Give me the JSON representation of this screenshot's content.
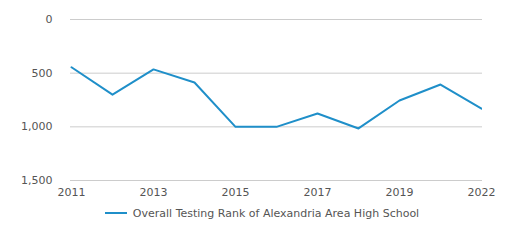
{
  "chart_data": {
    "type": "line",
    "categories": [
      "2011",
      null,
      "2013",
      null,
      "2015",
      null,
      "2017",
      null,
      "2019",
      null,
      "2022"
    ],
    "series": [
      {
        "name": "Overall Testing Rank of Alexandria Area High School",
        "color": "#1f8fc9",
        "values": [
          445,
          700,
          465,
          587,
          1000,
          1000,
          876,
          1015,
          755,
          606,
          830
        ]
      }
    ],
    "ylim": [
      0,
      1500
    ],
    "yticks": [
      0,
      500,
      1000,
      1500
    ],
    "grid": true
  }
}
